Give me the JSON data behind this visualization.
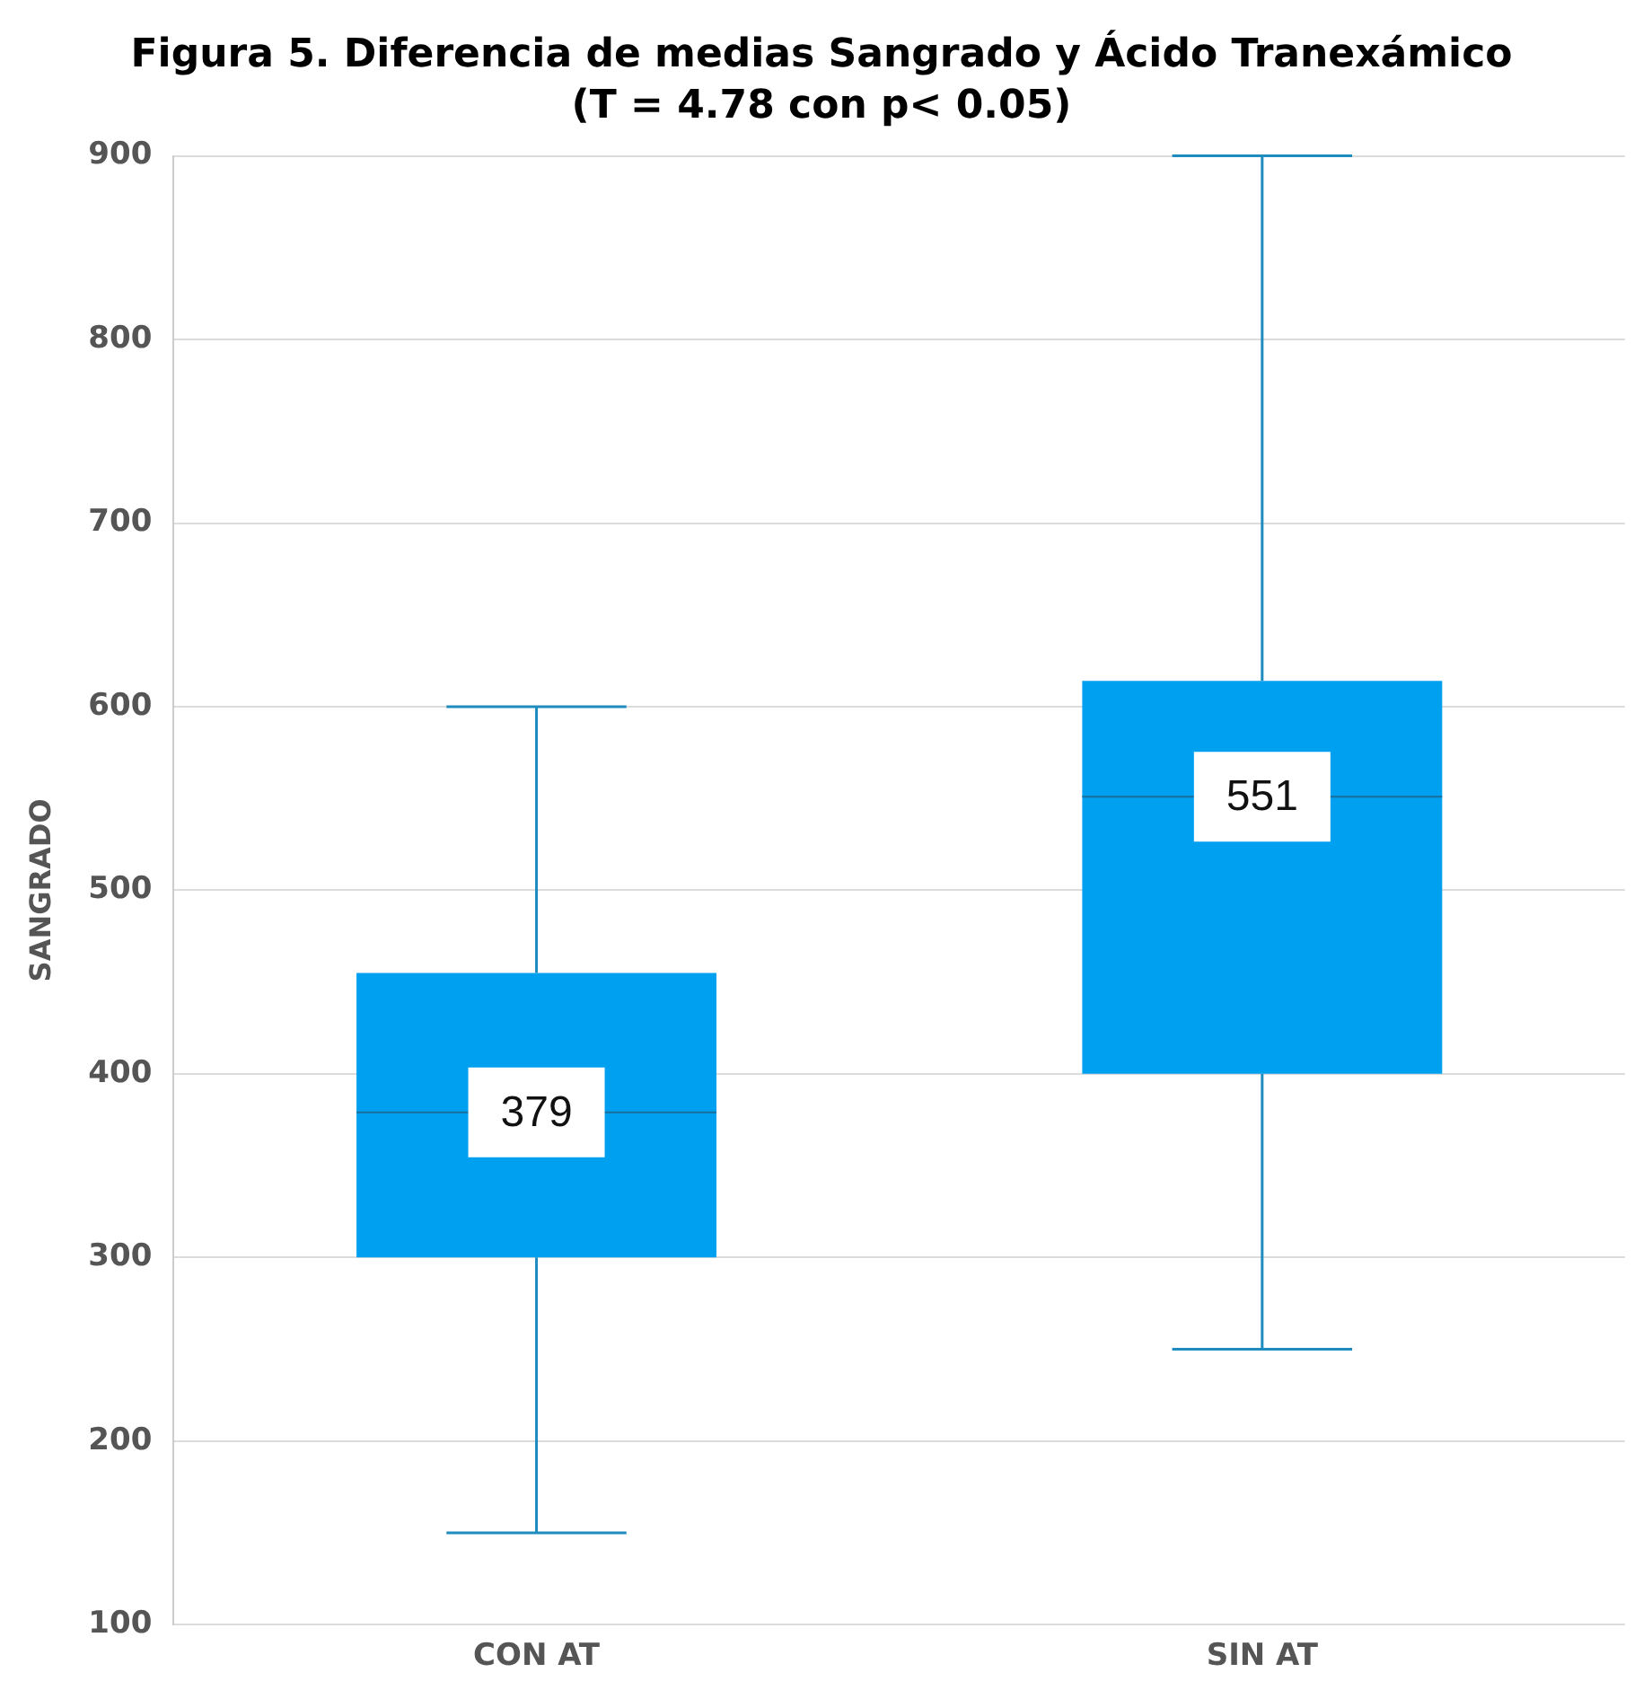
{
  "chart_data": {
    "type": "box",
    "title": "Figura 5. Diferencia de medias Sangrado y Ácido Tranexámico",
    "subtitle": "(T = 4.78 con p< 0.05)",
    "ylabel": "SANGRADO",
    "categories": [
      "CON AT",
      "SIN AT"
    ],
    "boxes": [
      {
        "low": 150,
        "q1": 300,
        "median": 379,
        "q3": 455,
        "high": 600
      },
      {
        "low": 250,
        "q1": 400,
        "median": 551,
        "q3": 614,
        "high": 900
      }
    ],
    "color": "#00a0f0",
    "ylim": [
      100,
      900
    ],
    "yticks": [
      100,
      200,
      300,
      400,
      500,
      600,
      700,
      800,
      900
    ],
    "grid": "y",
    "legend": false,
    "annotations": [
      {
        "text": "379",
        "x": "CON AT",
        "y": 379
      },
      {
        "text": "551",
        "x": "SIN AT",
        "y": 551
      }
    ]
  }
}
